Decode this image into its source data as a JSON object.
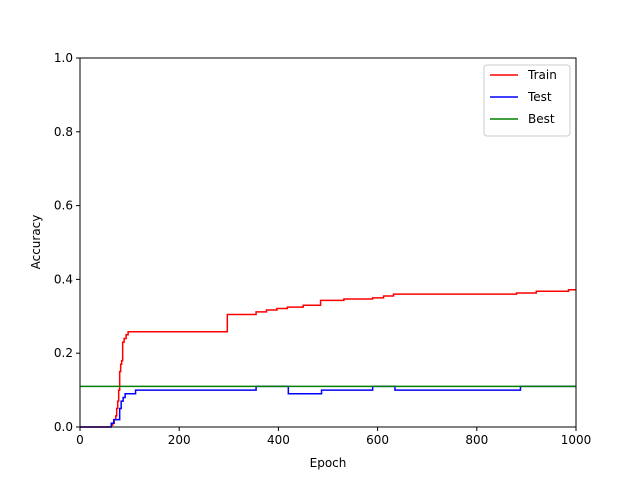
{
  "chart_data": {
    "type": "line",
    "xlabel": "Epoch",
    "ylabel": "Accuracy",
    "xlim": [
      0,
      1000
    ],
    "ylim": [
      0.0,
      1.0
    ],
    "x_ticks": [
      "0",
      "200",
      "400",
      "600",
      "800",
      "1000"
    ],
    "y_ticks": [
      "0.0",
      "0.2",
      "0.4",
      "0.6",
      "0.8",
      "1.0"
    ],
    "grid": false,
    "legend_position": "top-right",
    "series": [
      {
        "name": "Train",
        "color": "#ff0000",
        "step": true,
        "points": [
          [
            0,
            0.0
          ],
          [
            63,
            0.0
          ],
          [
            63,
            0.005
          ],
          [
            66,
            0.005
          ],
          [
            66,
            0.01
          ],
          [
            69,
            0.01
          ],
          [
            69,
            0.02
          ],
          [
            72,
            0.02
          ],
          [
            72,
            0.03
          ],
          [
            74,
            0.03
          ],
          [
            74,
            0.05
          ],
          [
            76,
            0.05
          ],
          [
            76,
            0.07
          ],
          [
            78,
            0.07
          ],
          [
            78,
            0.1
          ],
          [
            80,
            0.1
          ],
          [
            80,
            0.15
          ],
          [
            82,
            0.15
          ],
          [
            82,
            0.17
          ],
          [
            84,
            0.17
          ],
          [
            84,
            0.18
          ],
          [
            86,
            0.18
          ],
          [
            86,
            0.23
          ],
          [
            89,
            0.23
          ],
          [
            89,
            0.24
          ],
          [
            93,
            0.24
          ],
          [
            93,
            0.25
          ],
          [
            97,
            0.25
          ],
          [
            97,
            0.258
          ],
          [
            297,
            0.258
          ],
          [
            297,
            0.305
          ],
          [
            355,
            0.305
          ],
          [
            355,
            0.312
          ],
          [
            376,
            0.312
          ],
          [
            376,
            0.317
          ],
          [
            397,
            0.317
          ],
          [
            397,
            0.321
          ],
          [
            418,
            0.321
          ],
          [
            418,
            0.325
          ],
          [
            450,
            0.325
          ],
          [
            450,
            0.33
          ],
          [
            485,
            0.33
          ],
          [
            485,
            0.343
          ],
          [
            532,
            0.343
          ],
          [
            532,
            0.347
          ],
          [
            590,
            0.347
          ],
          [
            590,
            0.35
          ],
          [
            612,
            0.35
          ],
          [
            612,
            0.355
          ],
          [
            632,
            0.355
          ],
          [
            632,
            0.36
          ],
          [
            880,
            0.36
          ],
          [
            880,
            0.363
          ],
          [
            920,
            0.363
          ],
          [
            920,
            0.368
          ],
          [
            985,
            0.368
          ],
          [
            985,
            0.372
          ],
          [
            1000,
            0.372
          ]
        ]
      },
      {
        "name": "Test",
        "color": "#0000ff",
        "step": true,
        "points": [
          [
            0,
            0.0
          ],
          [
            63,
            0.0
          ],
          [
            63,
            0.01
          ],
          [
            68,
            0.01
          ],
          [
            68,
            0.02
          ],
          [
            80,
            0.02
          ],
          [
            80,
            0.05
          ],
          [
            83,
            0.05
          ],
          [
            83,
            0.07
          ],
          [
            87,
            0.07
          ],
          [
            87,
            0.08
          ],
          [
            91,
            0.08
          ],
          [
            91,
            0.09
          ],
          [
            112,
            0.09
          ],
          [
            112,
            0.1
          ],
          [
            355,
            0.1
          ],
          [
            355,
            0.11
          ],
          [
            420,
            0.11
          ],
          [
            420,
            0.09
          ],
          [
            487,
            0.09
          ],
          [
            487,
            0.1
          ],
          [
            590,
            0.1
          ],
          [
            590,
            0.11
          ],
          [
            635,
            0.11
          ],
          [
            635,
            0.1
          ],
          [
            888,
            0.1
          ],
          [
            888,
            0.11
          ],
          [
            1000,
            0.11
          ]
        ]
      },
      {
        "name": "Best",
        "color": "#008000",
        "step": false,
        "points": [
          [
            0,
            0.11
          ],
          [
            1000,
            0.11
          ]
        ]
      }
    ]
  }
}
